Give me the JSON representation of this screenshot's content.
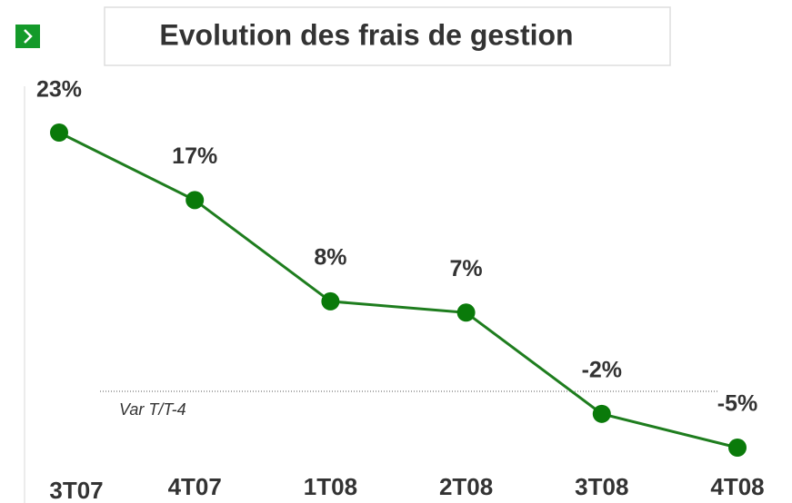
{
  "chart_data": {
    "type": "line",
    "title": "Evolution des frais de gestion",
    "categories": [
      "3T07",
      "4T07",
      "1T08",
      "2T08",
      "3T08",
      "4T08"
    ],
    "series": [
      {
        "name": "Var T/T-4",
        "color": "#1e7d1e",
        "values": [
          23,
          17,
          8,
          7,
          -2,
          -5
        ],
        "value_labels": [
          "23%",
          "17%",
          "8%",
          "7%",
          "-2%",
          "-5%"
        ]
      }
    ],
    "annotation": "Var T/T-4"
  }
}
